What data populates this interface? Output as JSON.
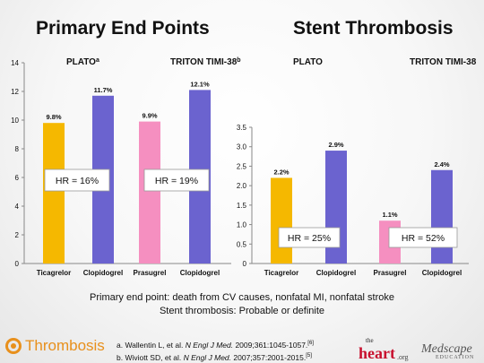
{
  "titles": {
    "left": "Primary End Points",
    "right": "Stent Thrombosis"
  },
  "chart_data": [
    {
      "type": "bar",
      "title": "Primary End Points",
      "ylim": [
        0,
        14
      ],
      "yticks": [
        0,
        2,
        4,
        6,
        8,
        10,
        12,
        14
      ],
      "categories": [
        "Ticagrelor",
        "Clopidogrel",
        "Prasugrel",
        "Clopidogrel"
      ],
      "values": [
        9.8,
        11.7,
        9.9,
        12.1
      ],
      "value_labels": [
        "9.8%",
        "11.7%",
        "9.9%",
        "12.1%"
      ],
      "colors": [
        "#f5b800",
        "#6b63cf",
        "#f58fc0",
        "#6b63cf"
      ],
      "groups": [
        {
          "label": "PLATO",
          "sup": "a"
        },
        {
          "label": "TRITON TIMI-38",
          "sup": "b"
        }
      ],
      "annotations": [
        "HR = 16%",
        "HR = 19%"
      ]
    },
    {
      "type": "bar",
      "title": "Stent Thrombosis",
      "ylim": [
        0,
        3.5
      ],
      "yticks": [
        0,
        0.5,
        1,
        1.5,
        2,
        2.5,
        3,
        3.5
      ],
      "categories": [
        "Ticagrelor",
        "Clopidogrel",
        "Prasugrel",
        "Clopidogrel"
      ],
      "values": [
        2.2,
        2.9,
        1.1,
        2.4
      ],
      "value_labels": [
        "2.2%",
        "2.9%",
        "1.1%",
        "2.4%"
      ],
      "colors": [
        "#f5b800",
        "#6b63cf",
        "#f58fc0",
        "#6b63cf"
      ],
      "groups": [
        {
          "label": "PLATO",
          "sup": ""
        },
        {
          "label": "TRITON TIMI-38",
          "sup": ""
        }
      ],
      "annotations": [
        "HR = 25%",
        "HR =  52%"
      ]
    }
  ],
  "footnotes": {
    "line1": "Primary end point: death from CV causes, nonfatal MI, nonfatal stroke",
    "line2": "Stent thrombosis: Probable or definite"
  },
  "references": {
    "a_prefix": "a. Wallentin L, et al. ",
    "a_journal": "N Engl J Med.",
    "a_rest": " 2009;361:1045-1057.",
    "a_ref": "[6]",
    "b_prefix": "b. Wiviott SD, et al. ",
    "b_journal": "N Engl J Med.",
    "b_rest": " 2007;357:2001-2015.",
    "b_ref": "[5]"
  },
  "logos": {
    "left_text": "Thrombosis",
    "heart_the": "the",
    "heart_main": "heart",
    "heart_org": ".org",
    "medscape_main": "Medscape",
    "medscape_sub": "EDUCATION"
  }
}
